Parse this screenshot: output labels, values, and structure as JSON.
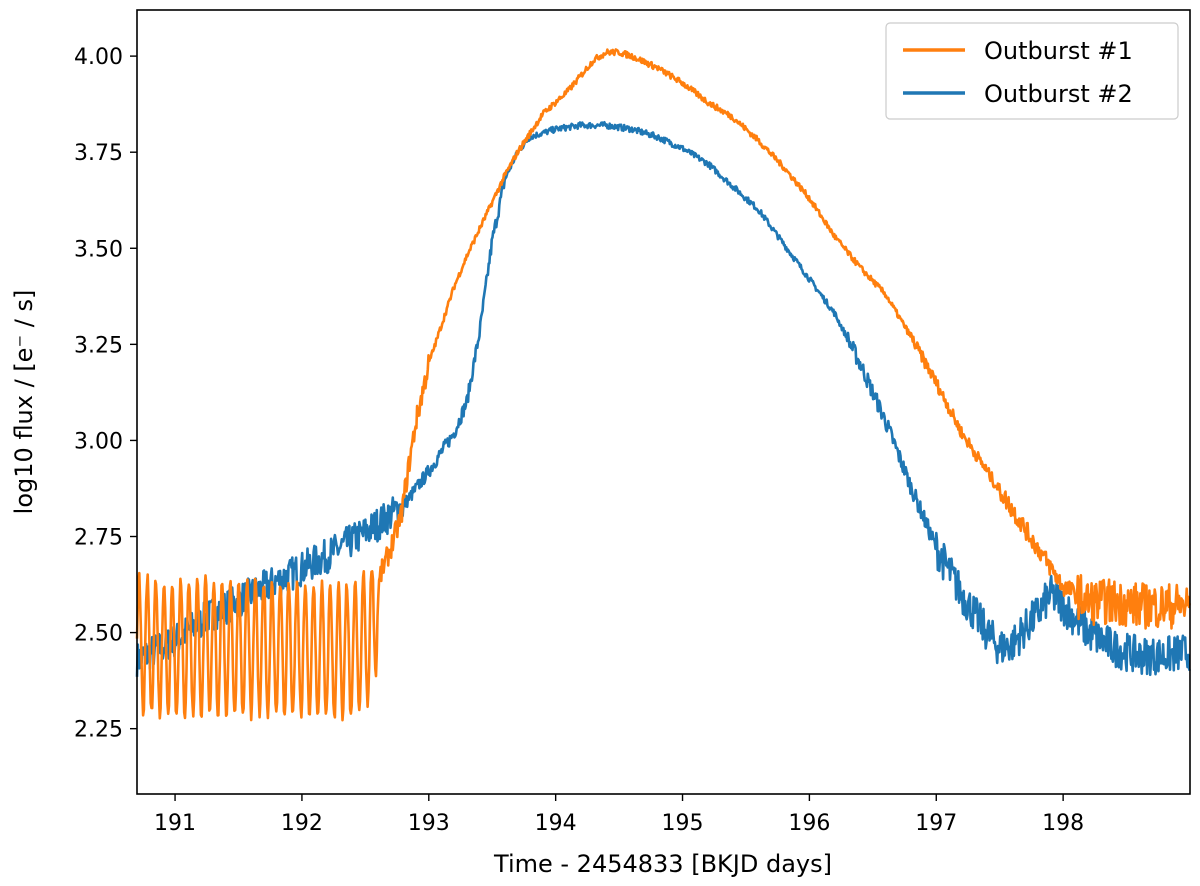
{
  "chart_data": {
    "type": "line",
    "title": "",
    "xlabel": "Time - 2454833 [BKJD days]",
    "ylabel": "log10 flux / [e⁻ / s]",
    "xlim": [
      190.7,
      199.0
    ],
    "ylim": [
      2.08,
      4.12
    ],
    "xticks": [
      191,
      192,
      193,
      194,
      195,
      196,
      197,
      198
    ],
    "xtick_labels": [
      "191",
      "192",
      "193",
      "194",
      "195",
      "196",
      "197",
      "198"
    ],
    "yticks": [
      2.25,
      2.5,
      2.75,
      3.0,
      3.25,
      3.5,
      3.75,
      4.0
    ],
    "ytick_labels": [
      "2.25",
      "2.50",
      "2.75",
      "3.00",
      "3.25",
      "3.50",
      "3.75",
      "4.00"
    ],
    "grid": false,
    "legend_position": "top-right",
    "series": [
      {
        "name": "Outburst #1",
        "color": "#ff7f0e",
        "oscillation": {
          "x_end": 192.6,
          "period": 0.0655,
          "amplitude": 0.175
        },
        "x": [
          190.7,
          190.9,
          191.2,
          191.5,
          191.8,
          192.1,
          192.4,
          192.55,
          192.62,
          192.7,
          192.78,
          192.85,
          192.9,
          193.0,
          193.1,
          193.2,
          193.3,
          193.4,
          193.5,
          193.6,
          193.7,
          193.8,
          193.9,
          194.0,
          194.1,
          194.2,
          194.3,
          194.4,
          194.5,
          194.6,
          194.8,
          195.0,
          195.2,
          195.4,
          195.6,
          195.8,
          196.0,
          196.2,
          196.4,
          196.6,
          196.8,
          197.0,
          197.2,
          197.4,
          197.6,
          197.8,
          198.0,
          198.1,
          198.2,
          198.4,
          198.6,
          198.8,
          199.0
        ],
        "y": [
          2.47,
          2.46,
          2.46,
          2.46,
          2.46,
          2.45,
          2.45,
          2.5,
          2.65,
          2.72,
          2.8,
          2.95,
          3.05,
          3.2,
          3.3,
          3.4,
          3.48,
          3.55,
          3.62,
          3.69,
          3.75,
          3.8,
          3.85,
          3.88,
          3.91,
          3.95,
          3.99,
          4.01,
          4.01,
          4.0,
          3.97,
          3.93,
          3.88,
          3.84,
          3.78,
          3.71,
          3.63,
          3.53,
          3.45,
          3.38,
          3.27,
          3.15,
          3.02,
          2.92,
          2.82,
          2.72,
          2.62,
          2.6,
          2.58,
          2.58,
          2.57,
          2.57,
          2.57
        ]
      },
      {
        "name": "Outburst #2",
        "color": "#1f77b4",
        "x": [
          190.7,
          191.0,
          191.3,
          191.6,
          191.9,
          192.2,
          192.5,
          192.8,
          193.0,
          193.2,
          193.3,
          193.4,
          193.5,
          193.6,
          193.7,
          193.8,
          193.9,
          194.0,
          194.2,
          194.4,
          194.6,
          194.8,
          195.0,
          195.2,
          195.4,
          195.6,
          195.8,
          196.0,
          196.2,
          196.4,
          196.6,
          196.8,
          197.0,
          197.2,
          197.4,
          197.5,
          197.6,
          197.8,
          197.9,
          198.0,
          198.2,
          198.4,
          198.6,
          198.8,
          199.0
        ],
        "y": [
          2.43,
          2.48,
          2.55,
          2.6,
          2.65,
          2.7,
          2.76,
          2.83,
          2.92,
          3.02,
          3.1,
          3.28,
          3.52,
          3.68,
          3.75,
          3.79,
          3.8,
          3.81,
          3.82,
          3.82,
          3.81,
          3.79,
          3.76,
          3.72,
          3.66,
          3.6,
          3.51,
          3.42,
          3.33,
          3.2,
          3.05,
          2.88,
          2.72,
          2.6,
          2.5,
          2.46,
          2.47,
          2.55,
          2.6,
          2.57,
          2.5,
          2.46,
          2.44,
          2.44,
          2.45
        ]
      }
    ]
  }
}
